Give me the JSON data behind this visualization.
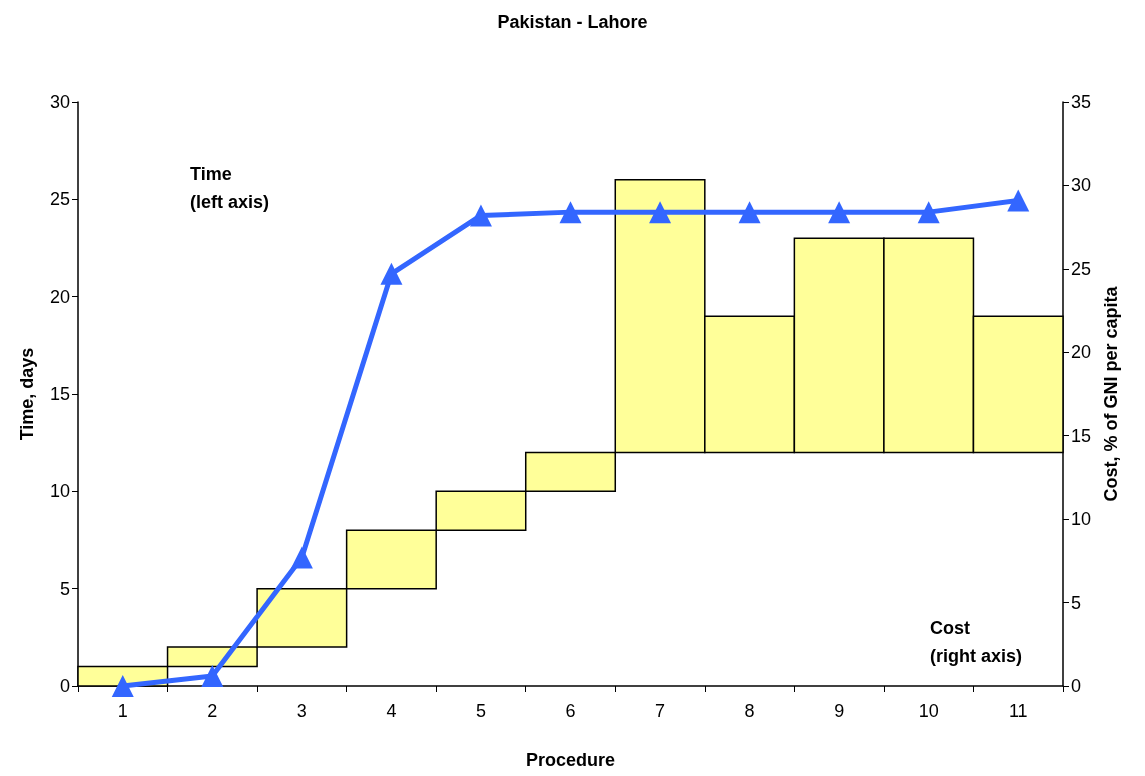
{
  "chart_data": {
    "type": "bar",
    "title": "Pakistan - Lahore",
    "xlabel": "Procedure",
    "ylabel": "Time, days",
    "y2label": "Cost, % of GNI per capita",
    "categories": [
      "1",
      "2",
      "3",
      "4",
      "5",
      "6",
      "7",
      "8",
      "9",
      "10",
      "11"
    ],
    "series": [
      {
        "color": "#ffff99",
        "base": [
          0,
          1,
          2,
          5,
          8,
          10,
          12,
          12,
          12,
          12,
          12
        ],
        "values": [
          1,
          1,
          3,
          3,
          2,
          2,
          14,
          7,
          11,
          11,
          7
        ]
      },
      {
        "type": "line",
        "axis": "y2",
        "color": "#3366ff",
        "marker": "triangle",
        "values": [
          0,
          0.6,
          7.7,
          24.7,
          28.2,
          28.4,
          28.4,
          28.4,
          28.4,
          28.4,
          29.1
        ]
      }
    ],
    "ylim": [
      0,
      30
    ],
    "yticks": [
      0,
      5,
      10,
      15,
      20,
      25,
      30
    ],
    "y2lim": [
      0,
      35
    ],
    "y2ticks": [
      0,
      5,
      10,
      15,
      20,
      25,
      30,
      35
    ],
    "grid": false,
    "annotations": [
      "Time\n(left axis)",
      "Cost\n(right axis)"
    ]
  }
}
